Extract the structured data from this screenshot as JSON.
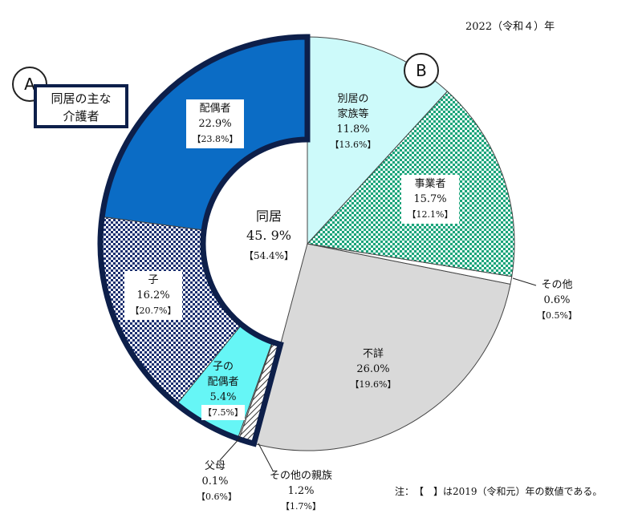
{
  "year_label": "2022（令和４）年",
  "note": "注：　【　】は2019（令和元）年の数値である。",
  "tag_a": "A",
  "tag_b": "B",
  "box_a": {
    "line1": "同居の主な",
    "line2": "介護者"
  },
  "center": {
    "line1": "同居",
    "line2": "45. 9%",
    "line3": "【54.4%】"
  },
  "chart_data": {
    "type": "pie",
    "title": "",
    "donut_hole": "同居",
    "slices": [
      {
        "name": "配偶者",
        "value": 22.9,
        "prev": 23.8,
        "group": "同居",
        "color": "#0b6cc5",
        "pattern": "solid"
      },
      {
        "name": "子",
        "value": 16.2,
        "prev": 20.7,
        "group": "同居",
        "color": "#1a2e6e",
        "pattern": "checker"
      },
      {
        "name": "子の配偶者",
        "value": 5.4,
        "prev": 7.5,
        "group": "同居",
        "color": "#66f6f6",
        "pattern": "solid"
      },
      {
        "name": "父母",
        "value": 0.1,
        "prev": 0.6,
        "group": "同居",
        "color": "#ffffff",
        "pattern": "solid"
      },
      {
        "name": "その他の親族",
        "value": 1.2,
        "prev": 1.7,
        "group": "同居",
        "color": "#ffffff",
        "pattern": "hatch"
      },
      {
        "name": "不詳",
        "value": 26.0,
        "prev": 19.6,
        "group": "",
        "color": "#d9d9d9",
        "pattern": "solid"
      },
      {
        "name": "その他",
        "value": 0.6,
        "prev": 0.5,
        "group": "",
        "color": "#ffffff",
        "pattern": "solid"
      },
      {
        "name": "事業者",
        "value": 15.7,
        "prev": 12.1,
        "group": "",
        "color": "#1aa37a",
        "pattern": "checker"
      },
      {
        "name": "別居の家族等",
        "value": 11.8,
        "prev": 13.6,
        "group": "",
        "color": "#cdfafa",
        "pattern": "solid"
      }
    ]
  },
  "labels": {
    "haigusha": {
      "l1": "配偶者",
      "l2": "22.9%",
      "l3": "【23.8%】"
    },
    "ko": {
      "l1": "子",
      "l2": "16.2%",
      "l3": "【20.7%】"
    },
    "ko_haigusha": {
      "l1": "子の",
      "l2": "配偶者",
      "l3": "5.4%",
      "l4": "【7.5%】"
    },
    "fubo": {
      "l1": "父母",
      "l2": "0.1%",
      "l3": "【0.6%】"
    },
    "sonota_shinzoku": {
      "l1": "その他の親族",
      "l2": "1.2%",
      "l3": "【1.7%】"
    },
    "fusho": {
      "l1": "不詳",
      "l2": "26.0%",
      "l3": "【19.6%】"
    },
    "sonota": {
      "l1": "その他",
      "l2": "0.6%",
      "l3": "【0.5%】"
    },
    "jigyosha": {
      "l1": "事業者",
      "l2": "15.7%",
      "l3": "【12.1%】"
    },
    "bekkyo": {
      "l1": "別居の",
      "l2": "家族等",
      "l3": "11.8%",
      "l4": "【13.6%】"
    }
  }
}
